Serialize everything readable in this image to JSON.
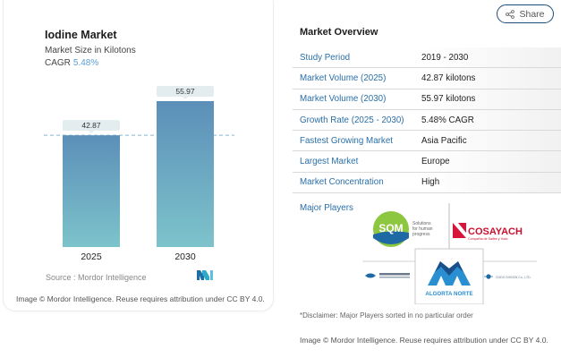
{
  "chart_data": {
    "type": "bar",
    "title": "Iodine Market",
    "subtitle": "Market Size in Kilotons",
    "cagr_label": "CAGR",
    "cagr_value": "5.48%",
    "categories": [
      "2025",
      "2030"
    ],
    "values": [
      42.87,
      55.97
    ],
    "value_labels": [
      "42.87",
      "55.97"
    ],
    "xlabel": "",
    "ylabel": "",
    "ylim": [
      0,
      70
    ],
    "grid": false,
    "reference_line": 42.87,
    "legend": "none",
    "colors": {
      "bar_top": "#5b8fb8",
      "bar_bottom": "#7dc3cb",
      "label_bg": "#e3edf0",
      "reference_line": "#9cc4dd"
    }
  },
  "chart_footer": {
    "source": "Source :  Mordor Intelligence",
    "attribution": "Image © Mordor Intelligence. Reuse requires attribution under CC BY 4.0."
  },
  "share": {
    "label": "Share",
    "icon": "share-icon"
  },
  "overview": {
    "title": "Market Overview",
    "rows": [
      {
        "label": "Study Period",
        "value": "2019 - 2030"
      },
      {
        "label": "Market Volume (2025)",
        "value": "42.87 kilotons"
      },
      {
        "label": "Market Volume (2030)",
        "value": "55.97 kilotons"
      },
      {
        "label": "Growth Rate (2025 - 2030)",
        "value": "5.48% CAGR"
      },
      {
        "label": "Fastest Growing Market",
        "value": "Asia Pacific"
      },
      {
        "label": "Largest Market",
        "value": "Europe"
      },
      {
        "label": "Market Concentration",
        "value": "High"
      }
    ],
    "major_players_label": "Major Players",
    "players": [
      {
        "name": "SQM",
        "tagline": "Solutions for human progress"
      },
      {
        "name": "COSAYACH",
        "tagline": "Compañía de Salitre y Yodo"
      },
      {
        "name": "ISE Chemicals Corporation",
        "tagline": ""
      },
      {
        "name": "ALGORTA NORTE",
        "tagline": ""
      },
      {
        "name": "GODO SHIGEN Co., LTD.",
        "tagline": ""
      }
    ],
    "disclaimer": "*Disclaimer: Major Players sorted in no particular order",
    "attribution": "Image © Mordor Intelligence. Reuse requires attribution under CC BY 4.0."
  },
  "brand": {
    "accent": "#2a6fa8",
    "cagr_color": "#5c9fd6"
  }
}
